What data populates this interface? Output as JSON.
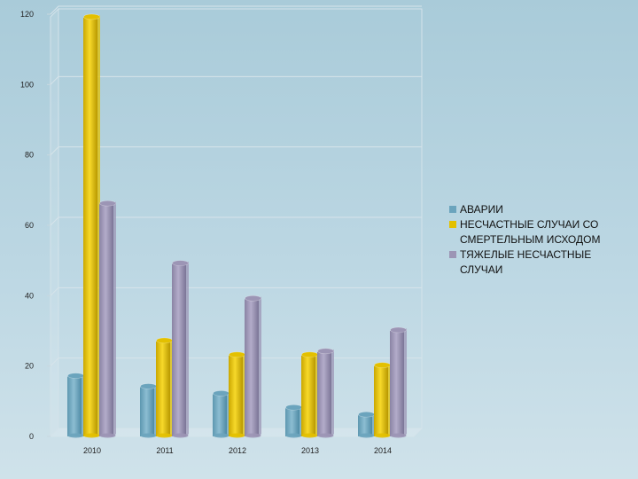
{
  "chart_data": {
    "type": "bar",
    "categories": [
      "2010",
      "2011",
      "2012",
      "2013",
      "2014"
    ],
    "series": [
      {
        "name": "АВАРИИ",
        "values": [
          17,
          14,
          12,
          8,
          6
        ],
        "color": "#6ba4bd"
      },
      {
        "name": "НЕСЧАСТНЫЕ СЛУЧАИ СО СМЕРТЕЛЬНЫМ ИСХОДОМ",
        "values": [
          119,
          27,
          23,
          23,
          20
        ],
        "color": "#e3c000"
      },
      {
        "name": "ТЯЖЕЛЫЕ НЕСЧАСТНЫЕ СЛУЧАИ",
        "values": [
          66,
          49,
          39,
          24,
          30
        ],
        "color": "#9c95b5"
      }
    ],
    "ylim": [
      0,
      120
    ],
    "yticks": [
      "0",
      "20",
      "40",
      "60",
      "80",
      "100",
      "120"
    ],
    "grid": true,
    "legend_position": "right"
  },
  "legend": {
    "items": [
      {
        "lines": [
          "АВАРИИ"
        ],
        "color": "#6ba4bd"
      },
      {
        "lines": [
          "НЕСЧАСТНЫЕ СЛУЧАИ СО",
          "СМЕРТЕЛЬНЫМ ИСХОДОМ"
        ],
        "color": "#e3c000"
      },
      {
        "lines": [
          "ТЯЖЕЛЫЕ НЕСЧАСТНЫЕ",
          "СЛУЧАИ"
        ],
        "color": "#9c95b5"
      }
    ]
  }
}
